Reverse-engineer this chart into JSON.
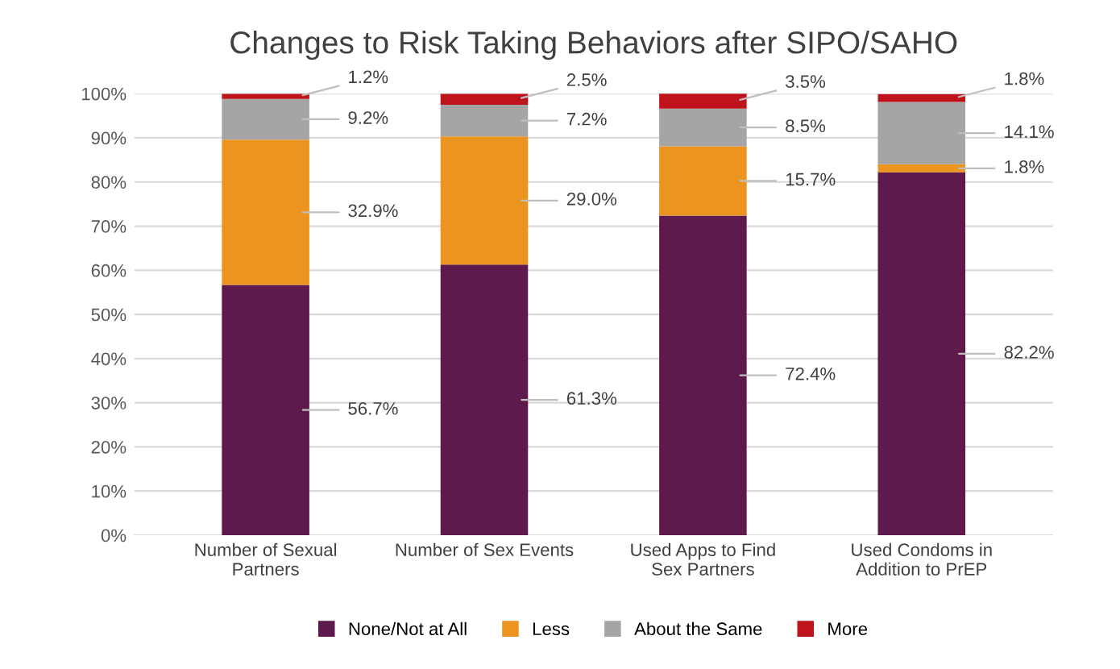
{
  "chart_data": {
    "type": "bar",
    "title": "Changes to Risk Taking Behaviors after SIPO/SAHO",
    "categories": [
      "Number of Sexual Partners",
      "Number of Sex Events",
      "Used Apps to Find Sex Partners",
      "Used Condoms in Addition to PrEP"
    ],
    "stacked": true,
    "series": [
      {
        "name": "None/Not at All",
        "color": "#5e1a4c",
        "values": [
          56.7,
          61.3,
          72.4,
          82.2
        ],
        "value_labels": [
          "56.7%",
          "61.3%",
          "72.4%",
          "82.2%"
        ]
      },
      {
        "name": "Less",
        "color": "#ec9420",
        "values": [
          32.9,
          29.0,
          15.7,
          1.8
        ],
        "value_labels": [
          "32.9%",
          "29.0%",
          "15.7%",
          "1.8%"
        ]
      },
      {
        "name": "About the Same",
        "color": "#a5a5a5",
        "values": [
          9.2,
          7.2,
          8.5,
          14.1
        ],
        "value_labels": [
          "9.2%",
          "7.2%",
          "8.5%",
          "14.1%"
        ]
      },
      {
        "name": "More",
        "color": "#c0141c",
        "values": [
          1.2,
          2.5,
          3.5,
          1.8
        ],
        "value_labels": [
          "1.2%",
          "2.5%",
          "3.5%",
          "1.8%"
        ]
      }
    ],
    "ylim": [
      0,
      100
    ],
    "yticks": [
      {
        "value": 0,
        "label": "0%"
      },
      {
        "value": 10,
        "label": "10%"
      },
      {
        "value": 20,
        "label": "20%"
      },
      {
        "value": 30,
        "label": "30%"
      },
      {
        "value": 40,
        "label": "40%"
      },
      {
        "value": 50,
        "label": "50%"
      },
      {
        "value": 60,
        "label": "60%"
      },
      {
        "value": 70,
        "label": "70%"
      },
      {
        "value": 80,
        "label": "80%"
      },
      {
        "value": 90,
        "label": "90%"
      },
      {
        "value": 100,
        "label": "100%"
      }
    ],
    "grid": "y",
    "legend": "bottom"
  }
}
